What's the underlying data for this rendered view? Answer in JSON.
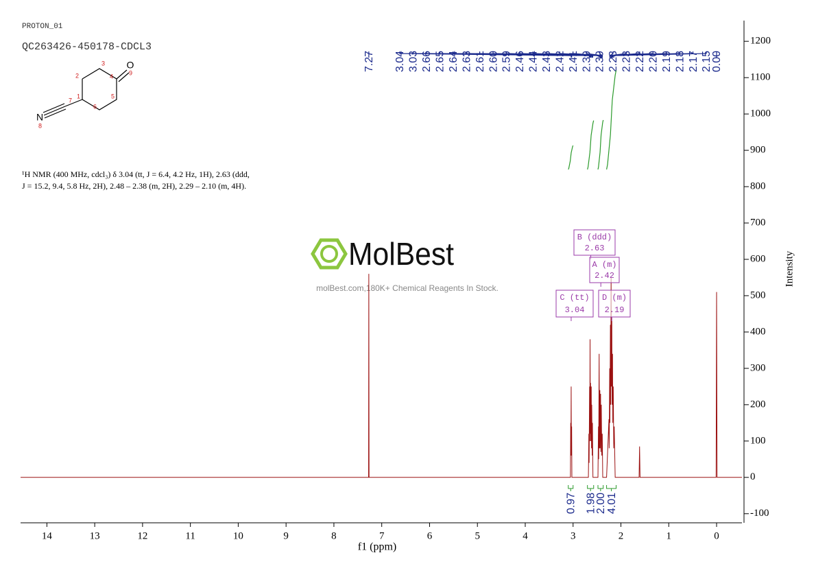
{
  "header": {
    "experiment": "PROTON_01",
    "sample": "QC263426-450178-CDCL3"
  },
  "molecule": {
    "atoms": [
      "O",
      "N"
    ],
    "numbers": [
      "1",
      "2",
      "3",
      "4",
      "5",
      "6",
      "7",
      "8",
      "9"
    ]
  },
  "description": [
    "¹H NMR (400 MHz, cdcl₃) δ 3.04 (tt, J = 6.4, 4.2 Hz, 1H), 2.63 (ddd,",
    "J = 15.2, 9.4, 5.8 Hz, 2H), 2.48 – 2.38 (m, 2H), 2.29 – 2.10 (m, 4H)."
  ],
  "watermark": {
    "brand": "MolBest",
    "tagline": "molBest.com,180K+ Chemical Reagents In Stock."
  },
  "chart_data": {
    "type": "line",
    "xlabel": "f1 (ppm)",
    "ylabel": "Intensity",
    "xlim": [
      14.55,
      -0.53
    ],
    "ylim": [
      -125,
      1257
    ],
    "xticks": [
      14,
      13,
      12,
      11,
      10,
      9,
      8,
      7,
      6,
      5,
      4,
      3,
      2,
      1,
      0
    ],
    "yticks": [
      -100,
      0,
      100,
      200,
      300,
      400,
      500,
      600,
      700,
      800,
      900,
      1000,
      1100,
      1200
    ],
    "series": [
      {
        "name": "f1",
        "color": "#9b1010",
        "x": [
          14.55,
          7.3,
          7.275,
          7.27,
          7.265,
          3.1,
          3.055,
          3.05,
          3.045,
          3.04,
          3.035,
          3.03,
          3.025,
          2.68,
          2.67,
          2.665,
          2.655,
          2.65,
          2.645,
          2.64,
          2.635,
          2.63,
          2.62,
          2.615,
          2.61,
          2.6,
          2.595,
          2.585,
          2.48,
          2.47,
          2.465,
          2.455,
          2.45,
          2.44,
          2.435,
          2.425,
          2.42,
          2.41,
          2.4,
          2.39,
          2.38,
          2.3,
          2.25,
          2.245,
          2.235,
          2.23,
          2.22,
          2.215,
          2.205,
          2.2,
          2.19,
          2.185,
          2.175,
          2.17,
          2.16,
          2.15,
          2.14,
          2.12,
          1.62,
          1.61,
          1.6,
          0.01,
          0,
          -0.01,
          -0.53
        ],
        "values": [
          0,
          0,
          0,
          560,
          0,
          0,
          0,
          150,
          60,
          250,
          60,
          140,
          0,
          0,
          120,
          40,
          250,
          100,
          380,
          120,
          260,
          100,
          250,
          80,
          200,
          60,
          150,
          0,
          0,
          140,
          50,
          340,
          80,
          240,
          80,
          230,
          70,
          200,
          60,
          120,
          0,
          0,
          160,
          80,
          300,
          150,
          420,
          200,
          550,
          250,
          430,
          200,
          340,
          150,
          250,
          80,
          140,
          0,
          0,
          85,
          0,
          0,
          510,
          0,
          0
        ]
      }
    ],
    "peak_labels": [
      7.27,
      3.04,
      3.03,
      2.66,
      2.65,
      2.64,
      2.63,
      2.61,
      {
        "value": 2.6,
        "label": "2.60"
      },
      2.59,
      2.46,
      2.44,
      2.43,
      2.42,
      2.41,
      2.39,
      2.39,
      2.23,
      2.23,
      2.22,
      {
        "value": 2.2,
        "label": "2.20"
      },
      2.19,
      2.18,
      2.17,
      2.15,
      {
        "value": 0,
        "label": "0.00"
      }
    ],
    "integrals": [
      {
        "range": [
          3.1,
          3.0
        ],
        "value": 0.97
      },
      {
        "range": [
          2.7,
          2.57
        ],
        "value": 1.98
      },
      {
        "range": [
          2.48,
          2.37
        ],
        "value": {
          "value": 2,
          "label": "2.00"
        }
      },
      {
        "range": [
          2.3,
          2.1
        ],
        "value": 4.01
      }
    ],
    "multiplets": [
      {
        "name": "B (ddd)",
        "shift": 2.63
      },
      {
        "name": "A (m)",
        "shift": 2.42
      },
      {
        "name": "C (tt)",
        "shift": 3.04
      },
      {
        "name": "D (m)",
        "shift": 2.19
      }
    ]
  }
}
